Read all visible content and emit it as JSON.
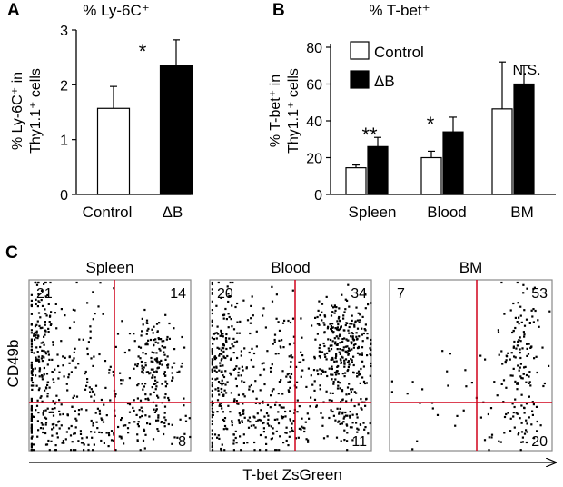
{
  "colors": {
    "control": "#ffffff",
    "deltaB": "#000000",
    "gate": "#d0021b",
    "axis": "#000000"
  },
  "chart_data": [
    {
      "panel": "A",
      "type": "bar",
      "title": "% Ly-6C⁺",
      "ylabel_line1": "% Ly-6C⁺ in",
      "ylabel_line2": "Thy1.1⁺ cells",
      "ylim": [
        0,
        3
      ],
      "yticks": [
        0,
        1,
        2,
        3
      ],
      "categories": [
        "Control",
        "ΔB"
      ],
      "values": [
        1.57,
        2.35
      ],
      "errors": [
        0.4,
        0.47
      ],
      "colors": [
        "#ffffff",
        "#000000"
      ],
      "annotation": "*"
    },
    {
      "panel": "B",
      "type": "bar",
      "title": "% T-bet⁺",
      "ylabel_line1": "% T-bet⁺ in",
      "ylabel_line2": "Thy1.1⁺ cells",
      "ylim": [
        0,
        80
      ],
      "yticks": [
        0,
        20,
        40,
        60,
        80
      ],
      "categories": [
        "Spleen",
        "Blood",
        "BM"
      ],
      "series": [
        {
          "name": "Control",
          "values": [
            14.5,
            20,
            46.5
          ],
          "errors": [
            1.5,
            3.5,
            25.5
          ]
        },
        {
          "name": "ΔB",
          "values": [
            26,
            34,
            60
          ],
          "errors": [
            5,
            8,
            10
          ]
        }
      ],
      "annotations": [
        "**",
        "*",
        "N.S."
      ],
      "legend": [
        "Control",
        "ΔB"
      ],
      "legend_position": "top-left"
    },
    {
      "panel": "C",
      "type": "scatter",
      "xlabel": "T-bet ZsGreen",
      "ylabel": "CD49b",
      "plots": [
        {
          "title": "Spleen",
          "quadrants": {
            "ul": "21",
            "ur": "14",
            "lr": "8"
          }
        },
        {
          "title": "Blood",
          "quadrants": {
            "ul": "20",
            "ur": "34",
            "lr": "11"
          }
        },
        {
          "title": "BM",
          "quadrants": {
            "ul": "7",
            "ur": "53",
            "lr": "20"
          }
        }
      ]
    }
  ]
}
